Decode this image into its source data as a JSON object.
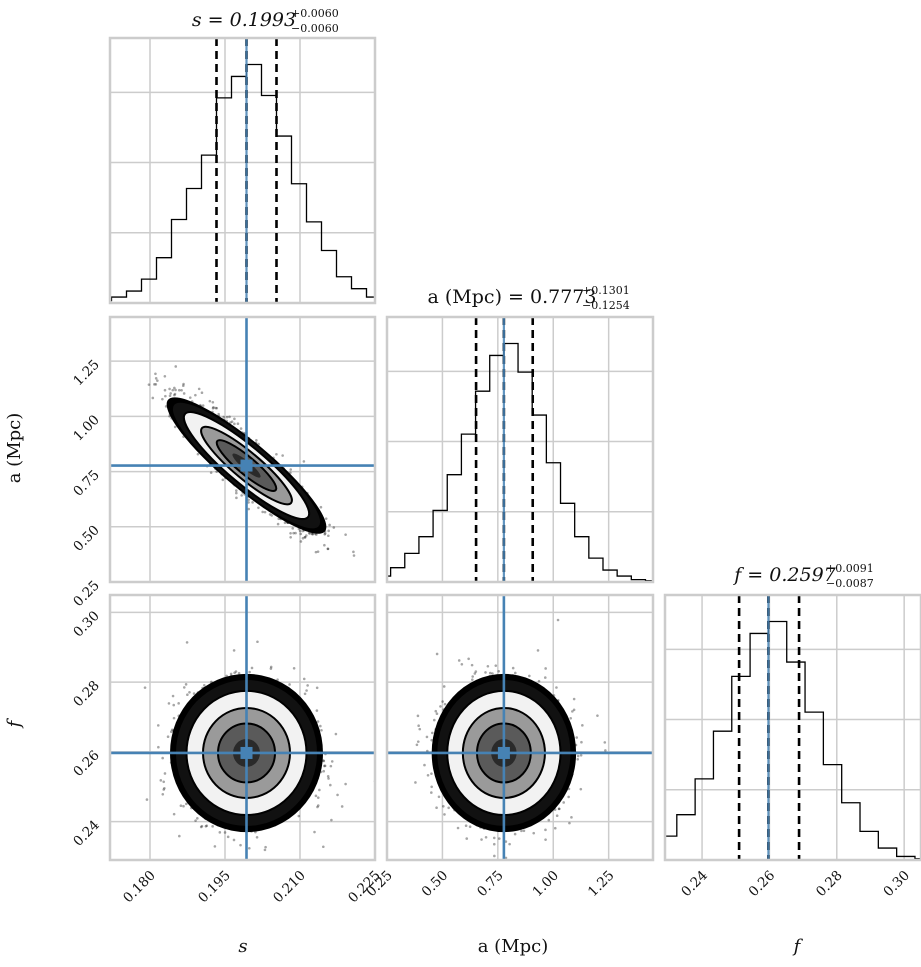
{
  "chart_data": {
    "type": "corner",
    "parameters": [
      {
        "symbol": "s",
        "unit": "",
        "median": 0.1993,
        "plus": 0.006,
        "minus": 0.006,
        "title_main": "s = 0.1993",
        "title_plus": "+0.0060",
        "title_minus": "−0.0060",
        "axis_label": "s",
        "range": [
          0.172,
          0.225
        ],
        "ticks": [
          0.18,
          0.195,
          0.21,
          0.225
        ],
        "tick_labels": [
          "0.180",
          "0.195",
          "0.210",
          "0.225"
        ],
        "hist_values": [
          0.5,
          1,
          2.5,
          5,
          10,
          19,
          35,
          48,
          62,
          86,
          95,
          100,
          87,
          70,
          50,
          34,
          22,
          11,
          6,
          2.5,
          1,
          0.5
        ]
      },
      {
        "symbol": "a",
        "unit": "(Mpc)",
        "median": 0.7773,
        "plus": 0.1301,
        "minus": 0.1254,
        "title_main": "a (Mpc) = 0.7773",
        "title_plus": "+0.1301",
        "title_minus": "−0.1254",
        "axis_label": "a (Mpc)",
        "range": [
          0.25,
          1.45
        ],
        "ticks": [
          0.25,
          0.5,
          0.75,
          1.0,
          1.25
        ],
        "tick_labels": [
          "0.25",
          "0.50",
          "0.75",
          "1.00",
          "1.25"
        ],
        "hist_values": [
          0.3,
          1,
          2.5,
          6,
          12,
          19,
          30,
          45,
          62,
          80,
          95,
          100,
          88,
          70,
          50,
          33,
          19,
          10,
          5,
          2.5,
          1,
          0.5
        ]
      },
      {
        "symbol": "f",
        "unit": "",
        "median": 0.2597,
        "plus": 0.0091,
        "minus": 0.0087,
        "title_main": "f = 0.2597",
        "title_plus": "+0.0091",
        "title_minus": "−0.0087",
        "axis_label": "f",
        "range": [
          0.229,
          0.305
        ],
        "ticks": [
          0.24,
          0.26,
          0.28,
          0.3
        ],
        "tick_labels": [
          "0.24",
          "0.26",
          "0.28",
          "0.30"
        ],
        "hist_values": [
          0.5,
          1,
          5,
          10,
          19,
          34,
          54,
          77,
          95,
          100,
          83,
          62,
          40,
          24,
          12,
          5,
          1.5,
          0.5
        ]
      }
    ],
    "y_axis_labels": [
      "a (Mpc)",
      "f"
    ],
    "correlations": {
      "s_a": -0.9,
      "s_f": 0.0,
      "a_f": 0.0
    },
    "quantiles": [
      0.16,
      0.5,
      0.84
    ],
    "truth_color": "#4682b4",
    "hist_color": "#000000",
    "grid": true
  }
}
